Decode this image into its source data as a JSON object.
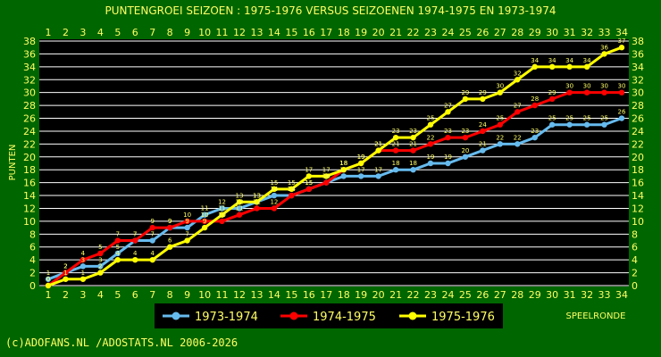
{
  "title": "PUNTENGROEI  SEIZOEN : 1975-1976 VERSUS SEIZOENEN 1974-1975 EN 1973-1974",
  "footer": "(c)ADOFANS.NL /ADOSTATS.NL 2006-2026",
  "colors": {
    "background": "#006600",
    "plot_background": "#000000",
    "grid": "#ffffff",
    "text": "#ffff66"
  },
  "chart_data": {
    "type": "line",
    "xlabel": "SPEELRONDE",
    "ylabel": "PUNTEN",
    "x": [
      1,
      2,
      3,
      4,
      5,
      6,
      7,
      8,
      9,
      10,
      11,
      12,
      13,
      14,
      15,
      16,
      17,
      18,
      19,
      20,
      21,
      22,
      23,
      24,
      25,
      26,
      27,
      28,
      29,
      30,
      31,
      32,
      33,
      34
    ],
    "ylim": [
      0,
      38
    ],
    "yticks": [
      0,
      2,
      4,
      6,
      8,
      10,
      12,
      14,
      16,
      18,
      20,
      22,
      24,
      26,
      28,
      30,
      32,
      34,
      36,
      38
    ],
    "grid": true,
    "legend_position": "bottom",
    "series": [
      {
        "name": "1973-1974",
        "color": "#66bbee",
        "values": [
          1,
          2,
          3,
          3,
          5,
          7,
          7,
          9,
          9,
          11,
          12,
          12,
          13,
          14,
          14,
          15,
          16,
          17,
          17,
          17,
          18,
          18,
          19,
          19,
          20,
          21,
          22,
          22,
          23,
          25,
          25,
          25,
          25,
          26
        ]
      },
      {
        "name": "1974-1975",
        "color": "#ff0000",
        "values": [
          0,
          2,
          4,
          5,
          7,
          7,
          9,
          9,
          10,
          10,
          10,
          11,
          12,
          12,
          14,
          15,
          16,
          18,
          19,
          21,
          21,
          21,
          22,
          23,
          23,
          24,
          25,
          27,
          28,
          29,
          30,
          30,
          30,
          30
        ]
      },
      {
        "name": "1975-1976",
        "color": "#ffff00",
        "values": [
          0,
          1,
          1,
          2,
          4,
          4,
          4,
          6,
          7,
          9,
          11,
          13,
          13,
          15,
          15,
          17,
          17,
          18,
          19,
          21,
          23,
          23,
          25,
          27,
          29,
          29,
          30,
          32,
          34,
          34,
          34,
          34,
          36,
          37
        ]
      }
    ]
  }
}
